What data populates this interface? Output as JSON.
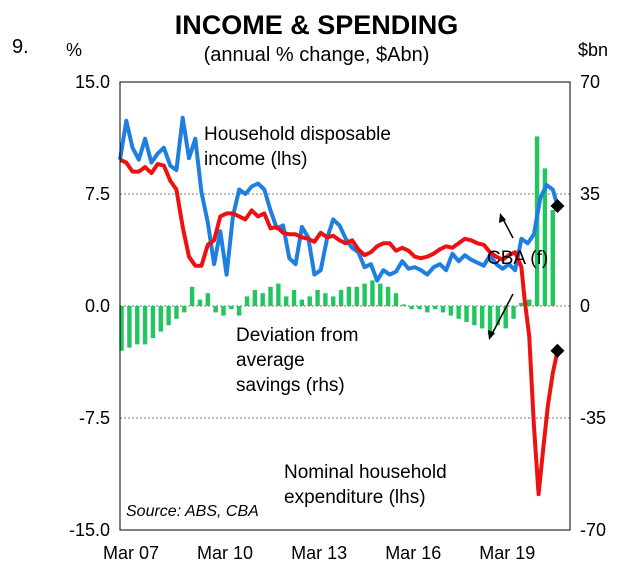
{
  "figure_number": "9.",
  "left_unit": "%",
  "right_unit": "$bn",
  "colors": {
    "income": "#1f7fe0",
    "expenditure": "#ee1111",
    "savings": "#22c55e",
    "gridline": "#777777",
    "marker": "#000000"
  },
  "chart_data": {
    "type": "line",
    "title": "INCOME & SPENDING",
    "subtitle": "(annual % change, $Abn)",
    "source": "Source: ABS, CBA",
    "x_ticks": [
      "Mar 07",
      "Mar 10",
      "Mar 13",
      "Mar 16",
      "Mar 19"
    ],
    "x_range": [
      2006.9,
      2021.25
    ],
    "y_left": {
      "min": -15,
      "max": 15,
      "ticks": [
        "15.0",
        "7.5",
        "0.0",
        "-7.5",
        "-15.0"
      ],
      "tick_values": [
        15,
        7.5,
        0,
        -7.5,
        -15
      ]
    },
    "y_right": {
      "min": -70,
      "max": 70,
      "ticks": [
        "70",
        "35",
        "0",
        "-35",
        "-70"
      ],
      "tick_values": [
        70,
        35,
        0,
        -35,
        -70
      ]
    },
    "gridlines_at": [
      7.5,
      0,
      -7.5
    ],
    "series": [
      {
        "name": "Household disposable income (lhs)",
        "label_lines": [
          "Household disposable",
          "income (lhs)"
        ],
        "axis": "left",
        "points": [
          [
            2006.9,
            9.8
          ],
          [
            2007.1,
            12.4
          ],
          [
            2007.3,
            10.6
          ],
          [
            2007.5,
            9.8
          ],
          [
            2007.7,
            11.2
          ],
          [
            2007.9,
            9.6
          ],
          [
            2008.1,
            10.2
          ],
          [
            2008.3,
            10.6
          ],
          [
            2008.5,
            9.4
          ],
          [
            2008.7,
            9.1
          ],
          [
            2008.9,
            12.6
          ],
          [
            2009.1,
            9.9
          ],
          [
            2009.3,
            11.2
          ],
          [
            2009.5,
            7.6
          ],
          [
            2009.7,
            5.6
          ],
          [
            2009.9,
            2.8
          ],
          [
            2010.1,
            5.0
          ],
          [
            2010.3,
            2.1
          ],
          [
            2010.5,
            6.0
          ],
          [
            2010.7,
            7.8
          ],
          [
            2010.9,
            7.5
          ],
          [
            2011.1,
            8.0
          ],
          [
            2011.3,
            8.2
          ],
          [
            2011.5,
            7.8
          ],
          [
            2011.7,
            6.4
          ],
          [
            2011.9,
            5.2
          ],
          [
            2012.1,
            5.4
          ],
          [
            2012.3,
            3.2
          ],
          [
            2012.5,
            2.8
          ],
          [
            2012.7,
            5.3
          ],
          [
            2012.9,
            4.6
          ],
          [
            2013.1,
            2.1
          ],
          [
            2013.3,
            2.4
          ],
          [
            2013.5,
            4.5
          ],
          [
            2013.7,
            5.8
          ],
          [
            2013.9,
            5.4
          ],
          [
            2014.1,
            4.5
          ],
          [
            2014.3,
            3.9
          ],
          [
            2014.5,
            3.6
          ],
          [
            2014.7,
            2.6
          ],
          [
            2014.9,
            2.8
          ],
          [
            2015.1,
            1.7
          ],
          [
            2015.3,
            2.4
          ],
          [
            2015.5,
            2.1
          ],
          [
            2015.7,
            2.3
          ],
          [
            2015.9,
            3.0
          ],
          [
            2016.1,
            2.5
          ],
          [
            2016.3,
            2.6
          ],
          [
            2016.5,
            2.4
          ],
          [
            2016.7,
            2.1
          ],
          [
            2016.9,
            2.6
          ],
          [
            2017.1,
            2.8
          ],
          [
            2017.3,
            2.4
          ],
          [
            2017.5,
            3.5
          ],
          [
            2017.7,
            3.0
          ],
          [
            2017.9,
            3.4
          ],
          [
            2018.1,
            3.1
          ],
          [
            2018.3,
            2.9
          ],
          [
            2018.5,
            2.7
          ],
          [
            2018.7,
            3.4
          ],
          [
            2018.9,
            2.8
          ],
          [
            2019.1,
            2.5
          ],
          [
            2019.3,
            2.8
          ],
          [
            2019.5,
            2.4
          ],
          [
            2019.7,
            4.5
          ],
          [
            2019.9,
            4.2
          ],
          [
            2020.1,
            4.8
          ],
          [
            2020.3,
            7.2
          ],
          [
            2020.5,
            8.1
          ],
          [
            2020.7,
            7.8
          ],
          [
            2020.85,
            6.7
          ]
        ]
      },
      {
        "name": "Nominal household expenditure (lhs)",
        "label_lines": [
          "Nominal household",
          "expenditure (lhs)"
        ],
        "axis": "left",
        "points": [
          [
            2006.9,
            9.8
          ],
          [
            2007.1,
            9.6
          ],
          [
            2007.3,
            9.0
          ],
          [
            2007.5,
            9.0
          ],
          [
            2007.7,
            9.3
          ],
          [
            2007.9,
            8.9
          ],
          [
            2008.1,
            9.5
          ],
          [
            2008.3,
            9.4
          ],
          [
            2008.5,
            8.4
          ],
          [
            2008.7,
            7.8
          ],
          [
            2008.9,
            5.3
          ],
          [
            2009.1,
            3.3
          ],
          [
            2009.3,
            2.7
          ],
          [
            2009.5,
            2.7
          ],
          [
            2009.7,
            4.1
          ],
          [
            2009.9,
            4.4
          ],
          [
            2010.1,
            6.0
          ],
          [
            2010.3,
            6.2
          ],
          [
            2010.5,
            6.2
          ],
          [
            2010.7,
            6.0
          ],
          [
            2010.9,
            5.8
          ],
          [
            2011.1,
            6.4
          ],
          [
            2011.3,
            6.0
          ],
          [
            2011.5,
            6.2
          ],
          [
            2011.7,
            5.2
          ],
          [
            2011.9,
            5.3
          ],
          [
            2012.1,
            4.9
          ],
          [
            2012.3,
            4.8
          ],
          [
            2012.5,
            4.8
          ],
          [
            2012.7,
            4.6
          ],
          [
            2012.9,
            4.5
          ],
          [
            2013.1,
            4.3
          ],
          [
            2013.3,
            4.9
          ],
          [
            2013.5,
            4.6
          ],
          [
            2013.7,
            4.7
          ],
          [
            2013.9,
            4.4
          ],
          [
            2014.1,
            4.2
          ],
          [
            2014.3,
            4.4
          ],
          [
            2014.5,
            3.8
          ],
          [
            2014.7,
            3.4
          ],
          [
            2014.9,
            3.6
          ],
          [
            2015.1,
            4.0
          ],
          [
            2015.3,
            4.2
          ],
          [
            2015.5,
            4.2
          ],
          [
            2015.7,
            3.7
          ],
          [
            2015.9,
            3.9
          ],
          [
            2016.1,
            3.7
          ],
          [
            2016.3,
            3.3
          ],
          [
            2016.5,
            3.2
          ],
          [
            2016.7,
            3.3
          ],
          [
            2016.9,
            3.5
          ],
          [
            2017.1,
            3.8
          ],
          [
            2017.3,
            4.0
          ],
          [
            2017.5,
            3.9
          ],
          [
            2017.7,
            4.2
          ],
          [
            2017.9,
            4.5
          ],
          [
            2018.1,
            4.4
          ],
          [
            2018.3,
            4.2
          ],
          [
            2018.5,
            4.1
          ],
          [
            2018.7,
            3.6
          ],
          [
            2018.9,
            3.3
          ],
          [
            2019.1,
            3.1
          ],
          [
            2019.3,
            3.4
          ],
          [
            2019.5,
            3.6
          ],
          [
            2019.7,
            2.6
          ],
          [
            2019.8,
            0.5
          ],
          [
            2019.95,
            -2.0
          ],
          [
            2020.1,
            -8.0
          ],
          [
            2020.25,
            -12.6
          ],
          [
            2020.4,
            -9.5
          ],
          [
            2020.55,
            -6.6
          ],
          [
            2020.7,
            -4.5
          ],
          [
            2020.85,
            -3.0
          ]
        ]
      },
      {
        "name": "Deviation from average savings (rhs)",
        "label_lines": [
          "Deviation from",
          "average",
          "savings (rhs)"
        ],
        "axis": "right",
        "type": "bar",
        "bars": [
          [
            2006.95,
            -14
          ],
          [
            2007.2,
            -13
          ],
          [
            2007.45,
            -12
          ],
          [
            2007.7,
            -12
          ],
          [
            2007.95,
            -10
          ],
          [
            2008.2,
            -8
          ],
          [
            2008.45,
            -6
          ],
          [
            2008.7,
            -4
          ],
          [
            2008.95,
            -2
          ],
          [
            2009.2,
            6
          ],
          [
            2009.45,
            2
          ],
          [
            2009.7,
            4
          ],
          [
            2009.95,
            -2
          ],
          [
            2010.2,
            -3
          ],
          [
            2010.45,
            -1
          ],
          [
            2010.7,
            -3
          ],
          [
            2010.95,
            3
          ],
          [
            2011.2,
            5
          ],
          [
            2011.45,
            4
          ],
          [
            2011.7,
            6
          ],
          [
            2011.95,
            7
          ],
          [
            2012.2,
            3
          ],
          [
            2012.45,
            5
          ],
          [
            2012.7,
            2
          ],
          [
            2012.95,
            3
          ],
          [
            2013.2,
            5
          ],
          [
            2013.45,
            4
          ],
          [
            2013.7,
            3
          ],
          [
            2013.95,
            5
          ],
          [
            2014.2,
            6
          ],
          [
            2014.45,
            6
          ],
          [
            2014.7,
            7
          ],
          [
            2014.95,
            8
          ],
          [
            2015.2,
            7
          ],
          [
            2015.45,
            6
          ],
          [
            2015.7,
            4
          ],
          [
            2015.95,
            0.5
          ],
          [
            2016.2,
            -1
          ],
          [
            2016.45,
            -1
          ],
          [
            2016.7,
            -2
          ],
          [
            2016.95,
            -1
          ],
          [
            2017.2,
            -2
          ],
          [
            2017.45,
            -3
          ],
          [
            2017.7,
            -4
          ],
          [
            2017.95,
            -5
          ],
          [
            2018.2,
            -6
          ],
          [
            2018.45,
            -7
          ],
          [
            2018.7,
            -9
          ],
          [
            2018.95,
            -6
          ],
          [
            2019.2,
            -7
          ],
          [
            2019.45,
            -4
          ],
          [
            2019.7,
            1
          ],
          [
            2019.95,
            2
          ],
          [
            2020.2,
            53
          ],
          [
            2020.45,
            43
          ],
          [
            2020.7,
            30
          ]
        ]
      }
    ],
    "forecast": {
      "label": "CBA (f)",
      "points": [
        [
          2020.85,
          6.7,
          "income"
        ],
        [
          2020.85,
          -3.0,
          "expenditure"
        ]
      ]
    }
  }
}
